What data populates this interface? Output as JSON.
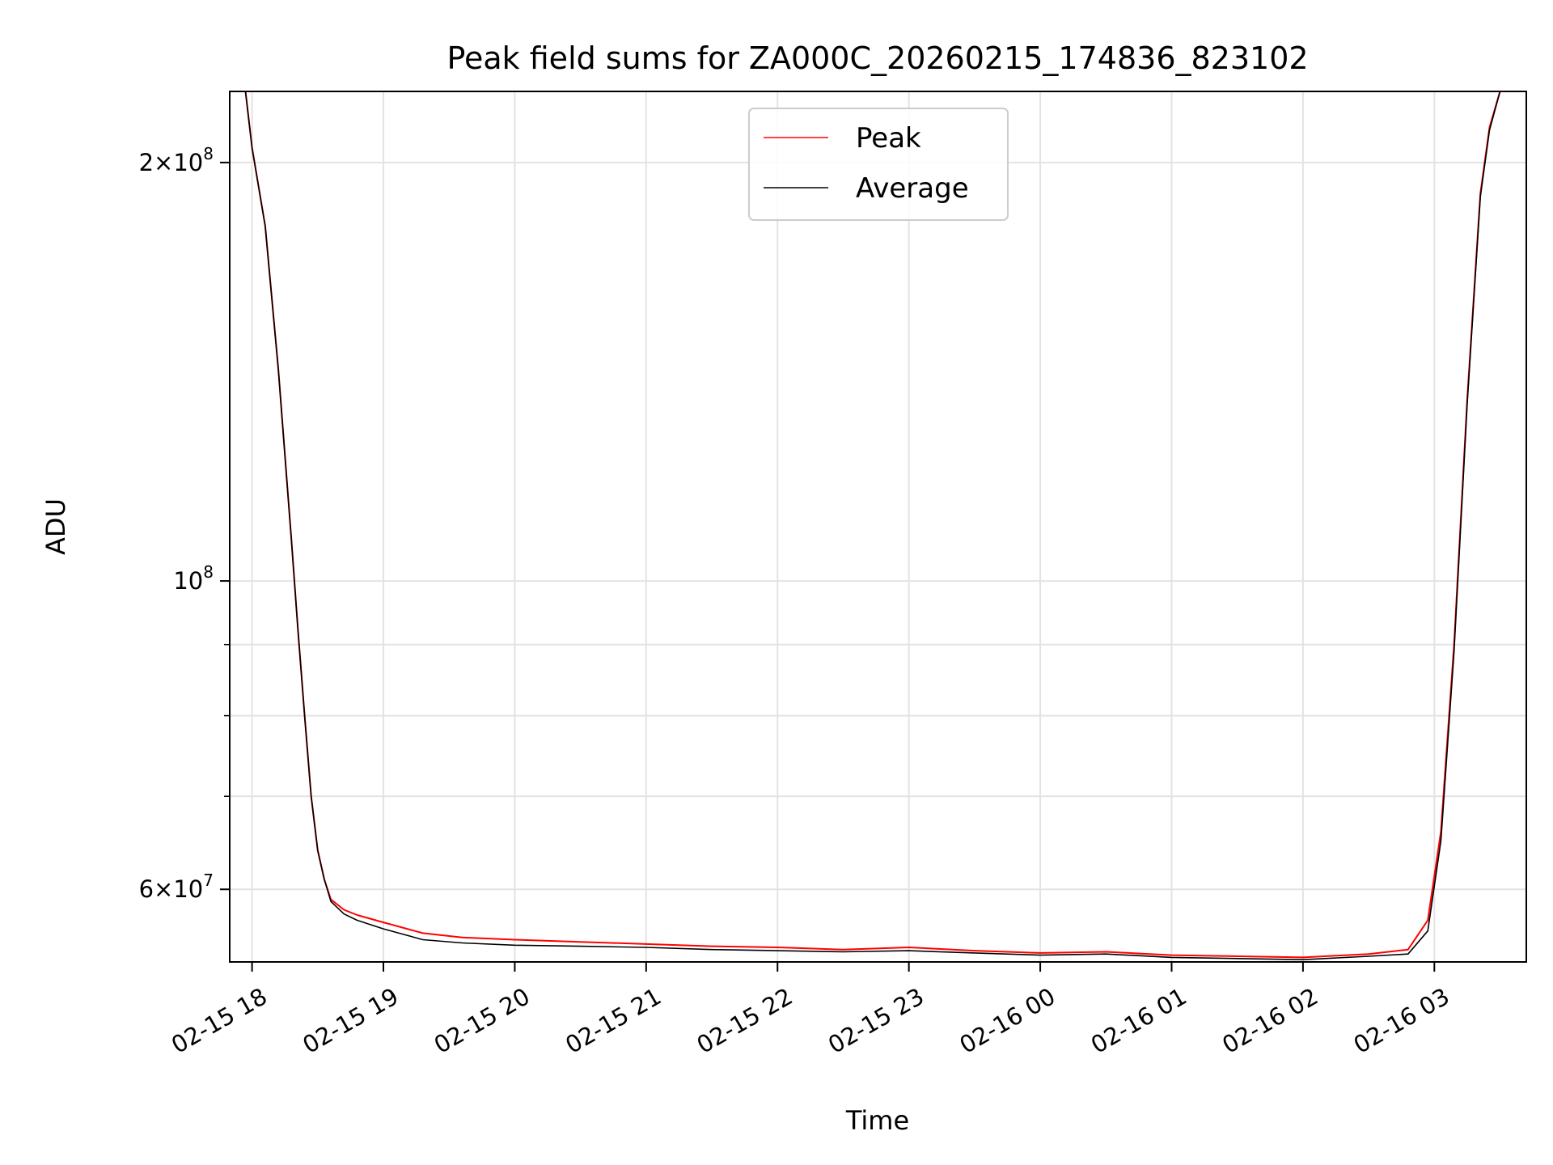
{
  "chart_data": {
    "type": "line",
    "title": "Peak field sums for ZA000C_20260215_174836_823102",
    "xlabel": "Time",
    "ylabel": "ADU",
    "yscale": "log",
    "grid": true,
    "legend_position": "top-center",
    "xlim": [
      -0.17,
      9.7
    ],
    "ylim": [
      53200000,
      225000000
    ],
    "x_units": "hours since 02-15 18:00",
    "x_ticks": [
      0,
      1,
      2,
      3,
      4,
      5,
      6,
      7,
      8,
      9
    ],
    "x_tick_labels": [
      "02-15 18",
      "02-15 19",
      "02-15 20",
      "02-15 21",
      "02-15 22",
      "02-15 23",
      "02-16 00",
      "02-16 01",
      "02-16 02",
      "02-16 03"
    ],
    "y_major_ticks": [
      {
        "value": 200000000,
        "mantissa": "2",
        "exponent": "8"
      },
      {
        "value": 100000000,
        "mantissa": "",
        "exponent": "8"
      },
      {
        "value": 60000000,
        "mantissa": "6",
        "exponent": "7"
      }
    ],
    "y_minor_ticks": [
      90000000,
      80000000,
      70000000
    ],
    "series": [
      {
        "name": "Peak",
        "color": "#ff0000",
        "x": [
          -0.15,
          -0.05,
          0.0,
          0.1,
          0.2,
          0.3,
          0.35,
          0.4,
          0.45,
          0.5,
          0.55,
          0.6,
          0.7,
          0.8,
          1.0,
          1.3,
          1.6,
          2.0,
          2.5,
          3.0,
          3.5,
          4.0,
          4.5,
          5.0,
          5.5,
          6.0,
          6.5,
          7.0,
          7.5,
          8.0,
          8.5,
          8.8,
          8.95,
          9.05,
          9.15,
          9.25,
          9.35,
          9.42,
          9.5,
          9.7
        ],
        "y": [
          225000000,
          225000000,
          205000000,
          180000000,
          142000000,
          107000000,
          92000000,
          80000000,
          70000000,
          64000000,
          61000000,
          59000000,
          58000000,
          57500000,
          56800000,
          55800000,
          55400000,
          55200000,
          55000000,
          54800000,
          54600000,
          54500000,
          54300000,
          54500000,
          54200000,
          54000000,
          54100000,
          53800000,
          53700000,
          53600000,
          53900000,
          54300000,
          57000000,
          66000000,
          90000000,
          135000000,
          190000000,
          212000000,
          225000000,
          225000000
        ]
      },
      {
        "name": "Average",
        "color": "#000000",
        "x": [
          -0.15,
          -0.05,
          0.0,
          0.1,
          0.2,
          0.3,
          0.35,
          0.4,
          0.45,
          0.5,
          0.55,
          0.6,
          0.7,
          0.8,
          1.0,
          1.3,
          1.6,
          2.0,
          2.5,
          3.0,
          3.5,
          4.0,
          4.5,
          5.0,
          5.5,
          6.0,
          6.5,
          7.0,
          7.5,
          8.0,
          8.5,
          8.8,
          8.95,
          9.05,
          9.15,
          9.25,
          9.35,
          9.42,
          9.5,
          9.7
        ],
        "y": [
          225000000,
          225000000,
          205000000,
          180000000,
          142000000,
          107000000,
          92000000,
          80000000,
          70000000,
          64000000,
          61000000,
          58800000,
          57600000,
          57000000,
          56200000,
          55200000,
          54900000,
          54700000,
          54600000,
          54500000,
          54300000,
          54200000,
          54100000,
          54200000,
          54000000,
          53800000,
          53900000,
          53600000,
          53500000,
          53400000,
          53700000,
          53900000,
          56000000,
          65000000,
          89000000,
          134000000,
          189000000,
          211000000,
          225000000,
          225000000
        ]
      }
    ]
  }
}
